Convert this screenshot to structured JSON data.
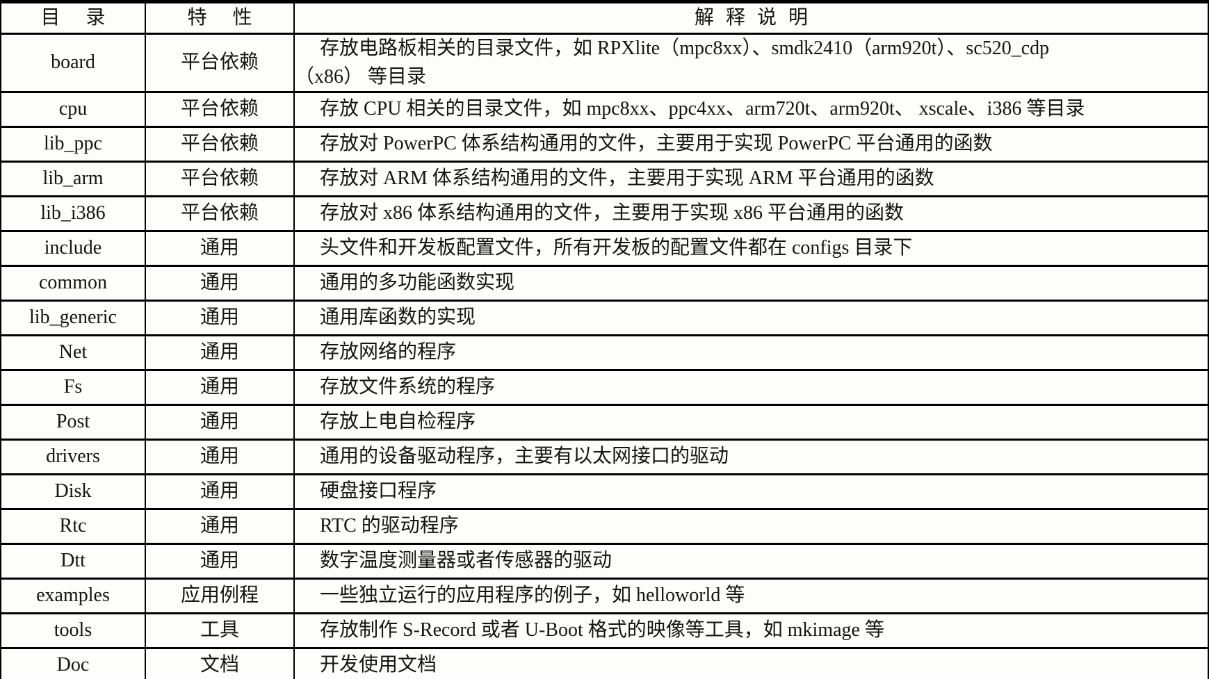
{
  "table": {
    "headers": {
      "dir": "目 录",
      "feature": "特 性",
      "desc": "解 释 说 明"
    },
    "rows": [
      {
        "dir": "board",
        "feature": "平台依赖",
        "desc": "存放电路板相关的目录文件，如 RPXlite（mpc8xx）、smdk2410（arm920t）、sc520_cdp\n（x86） 等目录"
      },
      {
        "dir": "cpu",
        "feature": "平台依赖",
        "desc": "存放 CPU 相关的目录文件，如 mpc8xx、ppc4xx、arm720t、arm920t、 xscale、i386 等目录"
      },
      {
        "dir": "lib_ppc",
        "feature": "平台依赖",
        "desc": "存放对 PowerPC 体系结构通用的文件，主要用于实现 PowerPC 平台通用的函数"
      },
      {
        "dir": "lib_arm",
        "feature": "平台依赖",
        "desc": "存放对 ARM 体系结构通用的文件，主要用于实现 ARM 平台通用的函数"
      },
      {
        "dir": "lib_i386",
        "feature": "平台依赖",
        "desc": "存放对 x86 体系结构通用的文件，主要用于实现 x86 平台通用的函数"
      },
      {
        "dir": "include",
        "feature": "通用",
        "desc": "头文件和开发板配置文件，所有开发板的配置文件都在 configs 目录下"
      },
      {
        "dir": "common",
        "feature": "通用",
        "desc": "通用的多功能函数实现"
      },
      {
        "dir": "lib_generic",
        "feature": "通用",
        "desc": "通用库函数的实现"
      },
      {
        "dir": "Net",
        "feature": "通用",
        "desc": "存放网络的程序"
      },
      {
        "dir": "Fs",
        "feature": "通用",
        "desc": "存放文件系统的程序"
      },
      {
        "dir": "Post",
        "feature": "通用",
        "desc": "存放上电自检程序"
      },
      {
        "dir": "drivers",
        "feature": "通用",
        "desc": "通用的设备驱动程序，主要有以太网接口的驱动"
      },
      {
        "dir": "Disk",
        "feature": "通用",
        "desc": "硬盘接口程序"
      },
      {
        "dir": "Rtc",
        "feature": "通用",
        "desc": "RTC 的驱动程序"
      },
      {
        "dir": "Dtt",
        "feature": "通用",
        "desc": "数字温度测量器或者传感器的驱动"
      },
      {
        "dir": "examples",
        "feature": "应用例程",
        "desc": "一些独立运行的应用程序的例子，如 helloworld 等"
      },
      {
        "dir": "tools",
        "feature": "工具",
        "desc": "存放制作 S-Record 或者 U-Boot 格式的映像等工具，如 mkimage 等"
      },
      {
        "dir": "Doc",
        "feature": "文档",
        "desc": "开发使用文档"
      }
    ]
  }
}
